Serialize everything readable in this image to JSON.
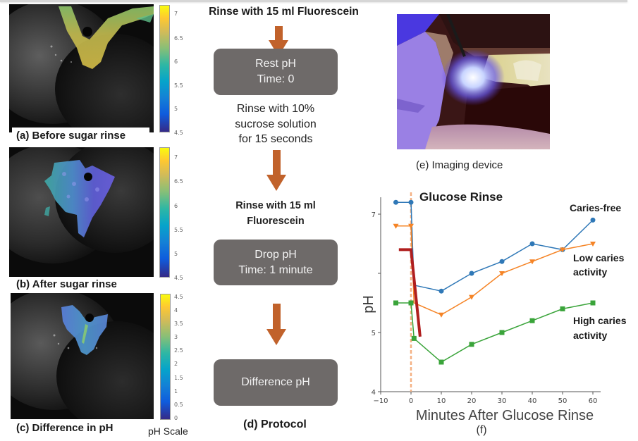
{
  "panels": {
    "a": {
      "caption": "(a) Before sugar rinse",
      "colorbar_ticks": [
        "7",
        "6.5",
        "6",
        "5.5",
        "5",
        "4.5"
      ]
    },
    "b": {
      "caption": "(b) After sugar rinse",
      "colorbar_ticks": [
        "7",
        "6.5",
        "6",
        "5.5",
        "5",
        "4.5"
      ]
    },
    "c": {
      "caption": "(c) Difference in pH",
      "colorbar_ticks": [
        "4.5",
        "4",
        "3.5",
        "3",
        "2.5",
        "2",
        "1.5",
        "1",
        "0.5",
        "0"
      ]
    },
    "scale_label": "pH Scale",
    "colormap": "parula"
  },
  "protocol": {
    "title": "Rinse with 15 ml Fluorescein",
    "box1": {
      "line1": "Rest pH",
      "line2": "Time: 0"
    },
    "step2": [
      "Rinse with 10%",
      "sucrose solution",
      "for 15 seconds"
    ],
    "step3": [
      "Rinse with 15 ml",
      "Fluorescein"
    ],
    "box2": {
      "line1": "Drop pH",
      "line2": "Time: 1 minute"
    },
    "box3": {
      "line1": "Difference pH"
    },
    "caption": "(d) Protocol",
    "arrow_color": "#c1622b",
    "box_color": "#6e6a69"
  },
  "imaging": {
    "caption": "(e) Imaging device"
  },
  "chart_data": {
    "type": "line",
    "title": "Glucose Rinse",
    "xlabel": "Minutes After Glucose Rinse",
    "ylabel": "pH",
    "caption": "(f)",
    "xlim": [
      -10,
      62
    ],
    "ylim": [
      4,
      7.3
    ],
    "xticks": [
      -10,
      0,
      10,
      20,
      30,
      40,
      50,
      60
    ],
    "yticks": [
      4,
      5,
      6,
      7
    ],
    "ytick_labels": [
      "4",
      "5",
      "",
      "7"
    ],
    "grid": false,
    "legend_position": "inline labels at right",
    "series": [
      {
        "name": "Caries-free",
        "label_lines": [
          "Caries-free"
        ],
        "color": "#2f78b7",
        "marker": "circle",
        "x": [
          -5,
          0,
          1,
          10,
          20,
          30,
          40,
          50,
          60
        ],
        "y": [
          7.2,
          7.2,
          5.8,
          5.7,
          6.0,
          6.2,
          6.5,
          6.4,
          6.9
        ],
        "marker_hidden_at": [
          1
        ]
      },
      {
        "name": "Low caries activity",
        "label_lines": [
          "Low caries",
          "activity"
        ],
        "color": "#f58426",
        "marker": "triangle-down",
        "x": [
          -5,
          0,
          1,
          10,
          20,
          30,
          40,
          50,
          60
        ],
        "y": [
          6.8,
          6.8,
          5.5,
          5.3,
          5.6,
          6.0,
          6.2,
          6.4,
          6.5
        ],
        "marker_hidden_at": [
          1
        ]
      },
      {
        "name": "High caries activity",
        "label_lines": [
          "High caries",
          "activity"
        ],
        "color": "#3aa43a",
        "marker": "square",
        "x": [
          -5,
          0,
          1,
          10,
          20,
          30,
          40,
          50,
          60
        ],
        "y": [
          5.5,
          5.5,
          4.9,
          4.5,
          4.8,
          5.0,
          5.2,
          5.4,
          5.5
        ],
        "marker_hidden_at": []
      }
    ],
    "vline": {
      "x": 0,
      "style": "dashed",
      "color": "#f4b183",
      "label": "Glucose Rinse"
    },
    "drop_line": {
      "x": [
        -4,
        0,
        3
      ],
      "y": [
        6.4,
        6.4,
        4.93
      ],
      "color": "#b01e1e"
    }
  }
}
